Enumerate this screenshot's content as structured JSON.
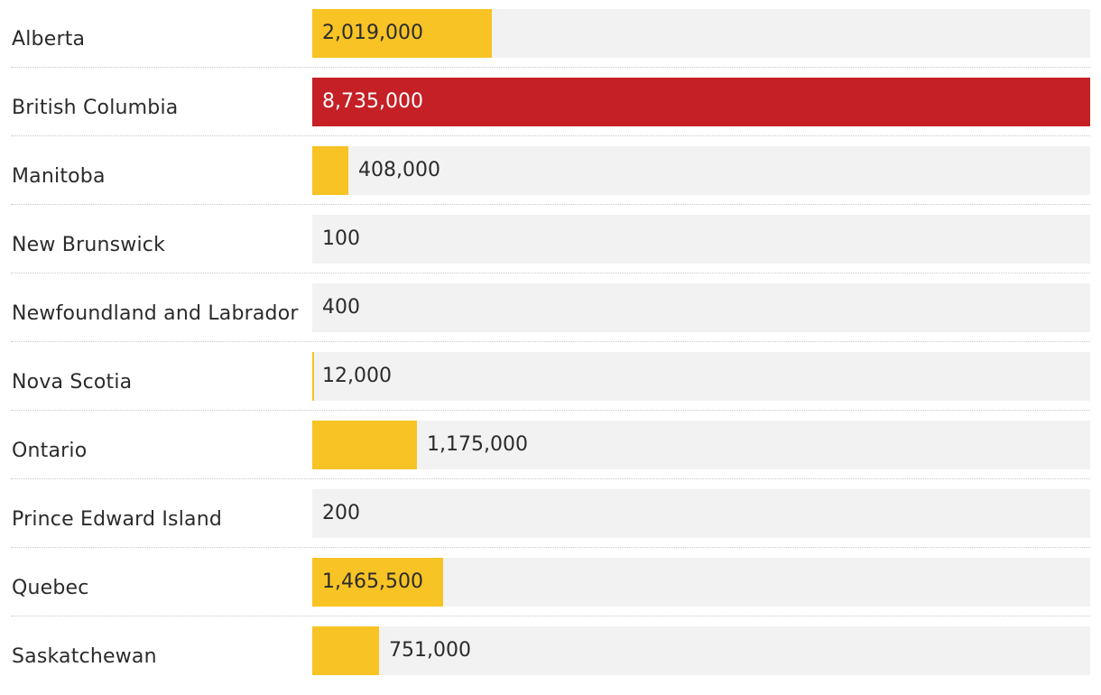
{
  "chart_data": {
    "type": "bar",
    "orientation": "horizontal",
    "categories": [
      "Alberta",
      "British Columbia",
      "Manitoba",
      "New Brunswick",
      "Newfoundland and Labrador",
      "Nova Scotia",
      "Ontario",
      "Prince Edward Island",
      "Quebec",
      "Saskatchewan"
    ],
    "values": [
      2019000,
      8735000,
      408000,
      100,
      400,
      12000,
      1175000,
      200,
      1465500,
      751000
    ],
    "value_labels": [
      "2,019,000",
      "8,735,000",
      "408,000",
      "100",
      "400",
      "12,000",
      "1,175,000",
      "200",
      "1,465,500",
      "751,000"
    ],
    "xlim": [
      0,
      8735000
    ],
    "highlight_category": "British Columbia",
    "grid": false,
    "legend": "none"
  },
  "colors": {
    "bar": "#f7c325",
    "highlight": "#c42026",
    "track": "#f2f2f2",
    "text": "#2b2b2b",
    "divider": "#c8c8c8"
  }
}
